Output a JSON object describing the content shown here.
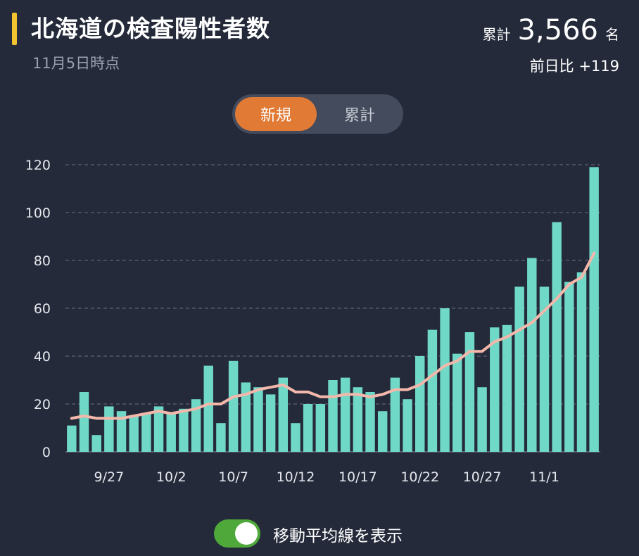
{
  "header": {
    "title": "北海道の検査陽性者数",
    "subtitle": "11月5日時点",
    "total_label": "累計",
    "total_value": "3,566",
    "total_unit": "名",
    "diff": "前日比 +119"
  },
  "tabs": [
    {
      "label": "新規",
      "active": true
    },
    {
      "label": "累計",
      "active": false
    }
  ],
  "toggle": {
    "label": "移動平均線を表示",
    "on": true
  },
  "colors": {
    "bar": "#6fd8c7",
    "line": "#f4b8ab",
    "accent": "#e07a34",
    "title_bar": "#f2c230"
  },
  "chart_data": {
    "type": "bar",
    "ylim": [
      0,
      120
    ],
    "yticks": [
      "0",
      "20",
      "40",
      "60",
      "80",
      "100",
      "120"
    ],
    "grid": true,
    "x_ticks": [
      "9/27",
      "10/2",
      "10/7",
      "10/12",
      "10/17",
      "10/22",
      "10/27",
      "11/1"
    ],
    "x_tick_index": [
      3,
      8,
      13,
      18,
      23,
      28,
      33,
      38
    ],
    "x": [
      "9/24",
      "9/25",
      "9/26",
      "9/27",
      "9/28",
      "9/29",
      "9/30",
      "10/1",
      "10/2",
      "10/3",
      "10/4",
      "10/5",
      "10/6",
      "10/7",
      "10/8",
      "10/9",
      "10/10",
      "10/11",
      "10/12",
      "10/13",
      "10/14",
      "10/15",
      "10/16",
      "10/17",
      "10/18",
      "10/19",
      "10/20",
      "10/21",
      "10/22",
      "10/23",
      "10/24",
      "10/25",
      "10/26",
      "10/27",
      "10/28",
      "10/29",
      "10/30",
      "10/31",
      "11/1",
      "11/2",
      "11/3",
      "11/4",
      "11/5"
    ],
    "series": [
      {
        "type": "bar",
        "values": [
          11,
          25,
          7,
          19,
          17,
          15,
          16,
          19,
          16,
          18,
          22,
          36,
          12,
          38,
          29,
          27,
          24,
          31,
          12,
          20,
          20,
          30,
          31,
          27,
          25,
          17,
          31,
          22,
          40,
          51,
          60,
          41,
          50,
          27,
          52,
          53,
          69,
          81,
          69,
          96,
          71,
          75,
          119
        ]
      },
      {
        "type": "line",
        "values": [
          14,
          15,
          14,
          14,
          14,
          15,
          16,
          17,
          16,
          17,
          18,
          20,
          20,
          23,
          24,
          26,
          27,
          28,
          25,
          25,
          23,
          23,
          24,
          24,
          23,
          24,
          26,
          26,
          28,
          32,
          36,
          38,
          42,
          42,
          46,
          48,
          51,
          54,
          59,
          64,
          70,
          73,
          83
        ]
      }
    ]
  }
}
